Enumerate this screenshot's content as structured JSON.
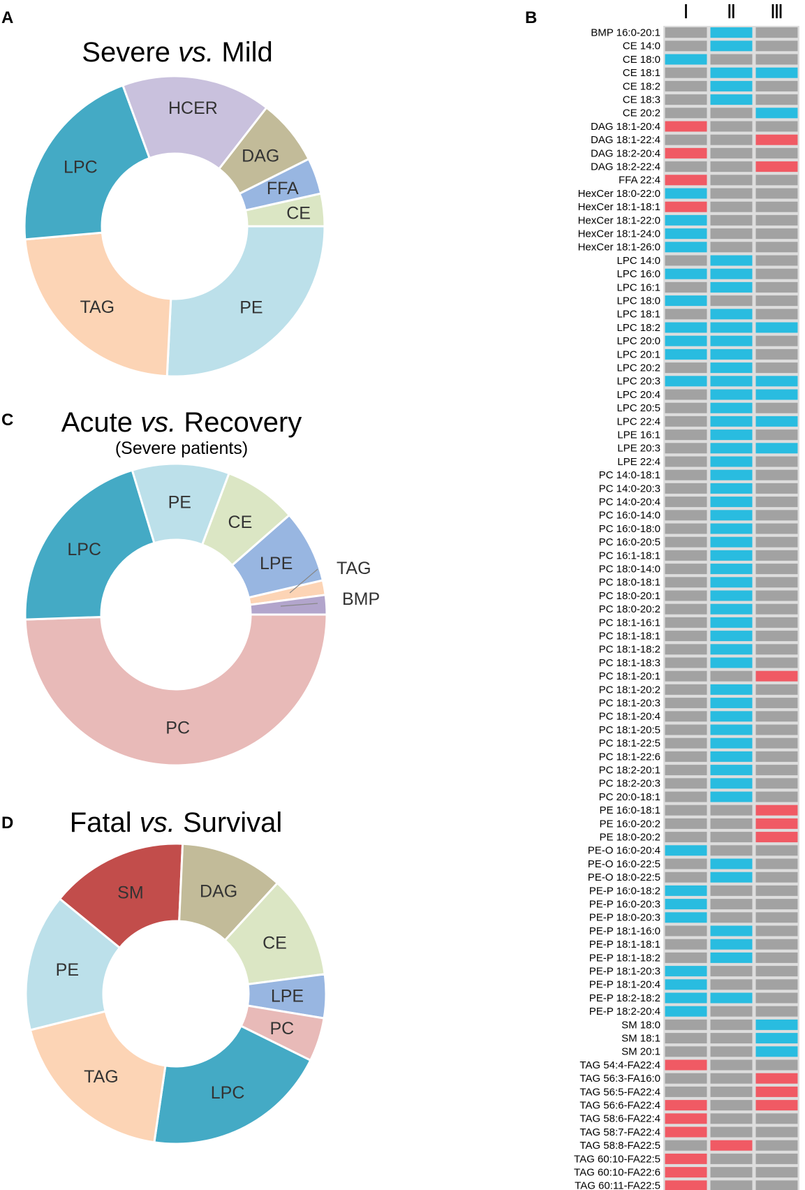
{
  "panels": {
    "a": "A",
    "b": "B",
    "c": "C",
    "d": "D"
  },
  "colors": {
    "blue": "#29BCE0",
    "red": "#F05A64",
    "gray": "#A2A2A2",
    "grid": "#DDDDDD",
    "slice_stroke": "#FFFFFF"
  },
  "chart_data": [
    {
      "id": "severe-vs-mild",
      "type": "pie",
      "title_parts": [
        "Severe ",
        "vs.",
        " Mild"
      ],
      "subtitle": "",
      "slices": [
        {
          "label": "PE",
          "value": 25.8,
          "color": "#BCE0EA"
        },
        {
          "label": "TAG",
          "value": 22.8,
          "color": "#FCD4B5"
        },
        {
          "label": "LPC",
          "value": 20.8,
          "color": "#44AAC5"
        },
        {
          "label": "HCER",
          "value": 16.1,
          "color": "#C9C1DD"
        },
        {
          "label": "DAG",
          "value": 7.1,
          "color": "#C2BB99"
        },
        {
          "label": "FFA",
          "value": 3.9,
          "color": "#98B6E1"
        },
        {
          "label": "CE",
          "value": 3.5,
          "color": "#DBE6C4"
        }
      ]
    },
    {
      "id": "acute-vs-recovery",
      "type": "pie",
      "title_parts": [
        "Acute ",
        "vs.",
        " Recovery"
      ],
      "subtitle": "(Severe patients)",
      "slices": [
        {
          "label": "PC",
          "value": 47.5,
          "color": "#E8BAB8"
        },
        {
          "label": "LPC",
          "value": 20.0,
          "color": "#44AAC5"
        },
        {
          "label": "PE",
          "value": 10.0,
          "color": "#BCE0EA"
        },
        {
          "label": "CE",
          "value": 7.5,
          "color": "#DBE6C4"
        },
        {
          "label": "LPE",
          "value": 7.5,
          "color": "#98B6E1"
        },
        {
          "label": "TAG",
          "value": 1.5,
          "color": "#FCD4B5"
        },
        {
          "label": "BMP",
          "value": 2.0,
          "color": "#B2A5CC"
        }
      ]
    },
    {
      "id": "fatal-vs-survival",
      "type": "pie",
      "title_parts": [
        "Fatal ",
        "vs.",
        " Survival"
      ],
      "subtitle": "",
      "slices": [
        {
          "label": "PE",
          "value": 14.8,
          "color": "#BCE0EA"
        },
        {
          "label": "SM",
          "value": 14.8,
          "color": "#C24D4B"
        },
        {
          "label": "DAG",
          "value": 11.1,
          "color": "#C2BB99"
        },
        {
          "label": "CE",
          "value": 11.1,
          "color": "#DBE6C4"
        },
        {
          "label": "LPE",
          "value": 4.7,
          "color": "#98B6E1"
        },
        {
          "label": "PC",
          "value": 4.7,
          "color": "#E8BAB8"
        },
        {
          "label": "LPC",
          "value": 20.0,
          "color": "#44AAC5"
        },
        {
          "label": "TAG",
          "value": 18.8,
          "color": "#FCD4B5"
        }
      ]
    },
    {
      "id": "lipid-heatmap",
      "type": "heatmap",
      "columns": [
        "Ⅰ",
        "Ⅱ",
        "Ⅲ"
      ],
      "legend_codes": {
        "b": "blue",
        "r": "red",
        "g": "gray"
      },
      "rows": [
        {
          "label": "BMP 16:0-20:1",
          "cells": [
            "g",
            "b",
            "g"
          ]
        },
        {
          "label": "CE 14:0",
          "cells": [
            "g",
            "b",
            "g"
          ]
        },
        {
          "label": "CE 18:0",
          "cells": [
            "b",
            "g",
            "g"
          ]
        },
        {
          "label": "CE 18:1",
          "cells": [
            "g",
            "b",
            "b"
          ]
        },
        {
          "label": "CE 18:2",
          "cells": [
            "g",
            "b",
            "g"
          ]
        },
        {
          "label": "CE 18:3",
          "cells": [
            "g",
            "b",
            "g"
          ]
        },
        {
          "label": "CE 20:2",
          "cells": [
            "g",
            "g",
            "b"
          ]
        },
        {
          "label": "DAG 18:1-20:4",
          "cells": [
            "r",
            "g",
            "g"
          ]
        },
        {
          "label": "DAG 18:1-22:4",
          "cells": [
            "g",
            "g",
            "r"
          ]
        },
        {
          "label": "DAG 18:2-20:4",
          "cells": [
            "r",
            "g",
            "g"
          ]
        },
        {
          "label": "DAG 18:2-22:4",
          "cells": [
            "g",
            "g",
            "r"
          ]
        },
        {
          "label": "FFA 22:4",
          "cells": [
            "r",
            "g",
            "g"
          ]
        },
        {
          "label": "HexCer 18:0-22:0",
          "cells": [
            "b",
            "g",
            "g"
          ]
        },
        {
          "label": "HexCer 18:1-18:1",
          "cells": [
            "r",
            "g",
            "g"
          ]
        },
        {
          "label": "HexCer 18:1-22:0",
          "cells": [
            "b",
            "g",
            "g"
          ]
        },
        {
          "label": "HexCer 18:1-24:0",
          "cells": [
            "b",
            "g",
            "g"
          ]
        },
        {
          "label": "HexCer 18:1-26:0",
          "cells": [
            "b",
            "g",
            "g"
          ]
        },
        {
          "label": "LPC 14:0",
          "cells": [
            "g",
            "b",
            "g"
          ]
        },
        {
          "label": "LPC 16:0",
          "cells": [
            "b",
            "b",
            "g"
          ]
        },
        {
          "label": "LPC 16:1",
          "cells": [
            "g",
            "b",
            "g"
          ]
        },
        {
          "label": "LPC 18:0",
          "cells": [
            "b",
            "g",
            "g"
          ]
        },
        {
          "label": "LPC 18:1",
          "cells": [
            "g",
            "b",
            "g"
          ]
        },
        {
          "label": "LPC 18:2",
          "cells": [
            "b",
            "b",
            "b"
          ]
        },
        {
          "label": "LPC 20:0",
          "cells": [
            "b",
            "b",
            "g"
          ]
        },
        {
          "label": "LPC 20:1",
          "cells": [
            "b",
            "b",
            "g"
          ]
        },
        {
          "label": "LPC 20:2",
          "cells": [
            "g",
            "b",
            "g"
          ]
        },
        {
          "label": "LPC 20:3",
          "cells": [
            "b",
            "b",
            "b"
          ]
        },
        {
          "label": "LPC 20:4",
          "cells": [
            "g",
            "b",
            "b"
          ]
        },
        {
          "label": "LPC 20:5",
          "cells": [
            "g",
            "b",
            "g"
          ]
        },
        {
          "label": "LPC 22:4",
          "cells": [
            "g",
            "b",
            "b"
          ]
        },
        {
          "label": "LPE 16:1",
          "cells": [
            "g",
            "b",
            "g"
          ]
        },
        {
          "label": "LPE 20:3",
          "cells": [
            "g",
            "b",
            "b"
          ]
        },
        {
          "label": "LPE 22:4",
          "cells": [
            "g",
            "b",
            "g"
          ]
        },
        {
          "label": "PC 14:0-18:1",
          "cells": [
            "g",
            "b",
            "g"
          ]
        },
        {
          "label": "PC 14:0-20:3",
          "cells": [
            "g",
            "b",
            "g"
          ]
        },
        {
          "label": "PC 14:0-20:4",
          "cells": [
            "g",
            "b",
            "g"
          ]
        },
        {
          "label": "PC 16:0-14:0",
          "cells": [
            "g",
            "b",
            "g"
          ]
        },
        {
          "label": "PC 16:0-18:0",
          "cells": [
            "g",
            "b",
            "g"
          ]
        },
        {
          "label": "PC 16:0-20:5",
          "cells": [
            "g",
            "b",
            "g"
          ]
        },
        {
          "label": "PC 16:1-18:1",
          "cells": [
            "g",
            "b",
            "g"
          ]
        },
        {
          "label": "PC 18:0-14:0",
          "cells": [
            "g",
            "b",
            "g"
          ]
        },
        {
          "label": "PC 18:0-18:1",
          "cells": [
            "g",
            "b",
            "g"
          ]
        },
        {
          "label": "PC 18:0-20:1",
          "cells": [
            "g",
            "b",
            "g"
          ]
        },
        {
          "label": "PC 18:0-20:2",
          "cells": [
            "g",
            "b",
            "g"
          ]
        },
        {
          "label": "PC 18:1-16:1",
          "cells": [
            "g",
            "b",
            "g"
          ]
        },
        {
          "label": "PC 18:1-18:1",
          "cells": [
            "g",
            "b",
            "g"
          ]
        },
        {
          "label": "PC 18:1-18:2",
          "cells": [
            "g",
            "b",
            "g"
          ]
        },
        {
          "label": "PC 18:1-18:3",
          "cells": [
            "g",
            "b",
            "g"
          ]
        },
        {
          "label": "PC 18:1-20:1",
          "cells": [
            "g",
            "g",
            "r"
          ]
        },
        {
          "label": "PC 18:1-20:2",
          "cells": [
            "g",
            "b",
            "g"
          ]
        },
        {
          "label": "PC 18:1-20:3",
          "cells": [
            "g",
            "b",
            "g"
          ]
        },
        {
          "label": "PC 18:1-20:4",
          "cells": [
            "g",
            "b",
            "g"
          ]
        },
        {
          "label": "PC 18:1-20:5",
          "cells": [
            "g",
            "b",
            "g"
          ]
        },
        {
          "label": "PC 18:1-22:5",
          "cells": [
            "g",
            "b",
            "g"
          ]
        },
        {
          "label": "PC 18:1-22:6",
          "cells": [
            "g",
            "b",
            "g"
          ]
        },
        {
          "label": "PC 18:2-20:1",
          "cells": [
            "g",
            "b",
            "g"
          ]
        },
        {
          "label": "PC 18:2-20:3",
          "cells": [
            "g",
            "b",
            "g"
          ]
        },
        {
          "label": "PC 20:0-18:1",
          "cells": [
            "g",
            "b",
            "g"
          ]
        },
        {
          "label": "PE 16:0-18:1",
          "cells": [
            "g",
            "g",
            "r"
          ]
        },
        {
          "label": "PE 16:0-20:2",
          "cells": [
            "g",
            "g",
            "r"
          ]
        },
        {
          "label": "PE 18:0-20:2",
          "cells": [
            "g",
            "g",
            "r"
          ]
        },
        {
          "label": "PE-O 16:0-20:4",
          "cells": [
            "b",
            "g",
            "g"
          ]
        },
        {
          "label": "PE-O 16:0-22:5",
          "cells": [
            "g",
            "b",
            "g"
          ]
        },
        {
          "label": "PE-O 18:0-22:5",
          "cells": [
            "g",
            "b",
            "g"
          ]
        },
        {
          "label": "PE-P 16:0-18:2",
          "cells": [
            "b",
            "g",
            "g"
          ]
        },
        {
          "label": "PE-P 16:0-20:3",
          "cells": [
            "b",
            "g",
            "g"
          ]
        },
        {
          "label": "PE-P 18:0-20:3",
          "cells": [
            "b",
            "g",
            "g"
          ]
        },
        {
          "label": "PE-P 18:1-16:0",
          "cells": [
            "g",
            "b",
            "g"
          ]
        },
        {
          "label": "PE-P 18:1-18:1",
          "cells": [
            "g",
            "b",
            "g"
          ]
        },
        {
          "label": "PE-P 18:1-18:2",
          "cells": [
            "g",
            "b",
            "g"
          ]
        },
        {
          "label": "PE-P 18:1-20:3",
          "cells": [
            "b",
            "g",
            "g"
          ]
        },
        {
          "label": "PE-P 18:1-20:4",
          "cells": [
            "b",
            "g",
            "g"
          ]
        },
        {
          "label": "PE-P 18:2-18:2",
          "cells": [
            "b",
            "b",
            "g"
          ]
        },
        {
          "label": "PE-P 18:2-20:4",
          "cells": [
            "b",
            "g",
            "g"
          ]
        },
        {
          "label": "SM 18:0",
          "cells": [
            "g",
            "g",
            "b"
          ]
        },
        {
          "label": "SM 18:1",
          "cells": [
            "g",
            "g",
            "b"
          ]
        },
        {
          "label": "SM 20:1",
          "cells": [
            "g",
            "g",
            "b"
          ]
        },
        {
          "label": "TAG 54:4-FA22:4",
          "cells": [
            "r",
            "g",
            "g"
          ]
        },
        {
          "label": "TAG 56:3-FA16:0",
          "cells": [
            "g",
            "g",
            "r"
          ]
        },
        {
          "label": "TAG 56:5-FA22:4",
          "cells": [
            "g",
            "g",
            "r"
          ]
        },
        {
          "label": "TAG 56:6-FA22:4",
          "cells": [
            "r",
            "g",
            "r"
          ]
        },
        {
          "label": "TAG 58:6-FA22:4",
          "cells": [
            "r",
            "g",
            "g"
          ]
        },
        {
          "label": "TAG 58:7-FA22:4",
          "cells": [
            "r",
            "g",
            "g"
          ]
        },
        {
          "label": "TAG 58:8-FA22:5",
          "cells": [
            "g",
            "r",
            "g"
          ]
        },
        {
          "label": "TAG 60:10-FA22:5",
          "cells": [
            "r",
            "g",
            "g"
          ]
        },
        {
          "label": "TAG 60:10-FA22:6",
          "cells": [
            "r",
            "g",
            "g"
          ]
        },
        {
          "label": "TAG 60:11-FA22:5",
          "cells": [
            "r",
            "g",
            "g"
          ]
        }
      ]
    }
  ]
}
